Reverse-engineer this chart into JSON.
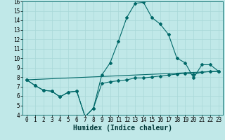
{
  "xlabel": "Humidex (Indice chaleur)",
  "background_color": "#c0e8e8",
  "line_color": "#006868",
  "xlim": [
    -0.5,
    23.5
  ],
  "ylim": [
    4,
    16
  ],
  "xticks": [
    0,
    1,
    2,
    3,
    4,
    5,
    6,
    7,
    8,
    9,
    10,
    11,
    12,
    13,
    14,
    15,
    16,
    17,
    18,
    19,
    20,
    21,
    22,
    23
  ],
  "yticks": [
    4,
    5,
    6,
    7,
    8,
    9,
    10,
    11,
    12,
    13,
    14,
    15,
    16
  ],
  "line1_x": [
    0,
    1,
    2,
    3,
    4,
    5,
    6,
    7,
    8,
    9,
    10,
    11,
    12,
    13,
    14,
    15,
    16,
    17,
    18,
    19,
    20,
    21,
    22,
    23
  ],
  "line1_y": [
    7.7,
    7.1,
    6.6,
    6.5,
    5.9,
    6.4,
    6.5,
    3.8,
    4.7,
    8.2,
    9.5,
    11.8,
    14.3,
    15.8,
    15.9,
    14.3,
    13.6,
    12.5,
    10.0,
    9.5,
    7.9,
    9.3,
    9.3,
    8.6
  ],
  "line2_x": [
    0,
    1,
    2,
    3,
    4,
    5,
    6,
    7,
    8,
    9,
    10,
    11,
    12,
    13,
    14,
    15,
    16,
    17,
    18,
    19,
    20,
    21,
    22,
    23
  ],
  "line2_y": [
    7.7,
    7.1,
    6.6,
    6.5,
    5.9,
    6.4,
    6.5,
    3.8,
    4.7,
    7.3,
    7.5,
    7.6,
    7.7,
    7.9,
    7.9,
    8.0,
    8.1,
    8.2,
    8.3,
    8.4,
    8.3,
    8.5,
    8.6,
    8.6
  ],
  "line3_x": [
    0,
    23
  ],
  "line3_y": [
    7.7,
    8.6
  ],
  "grid_color": "#a8d8d8",
  "xlabel_fontsize": 7,
  "tick_fontsize": 5.5
}
